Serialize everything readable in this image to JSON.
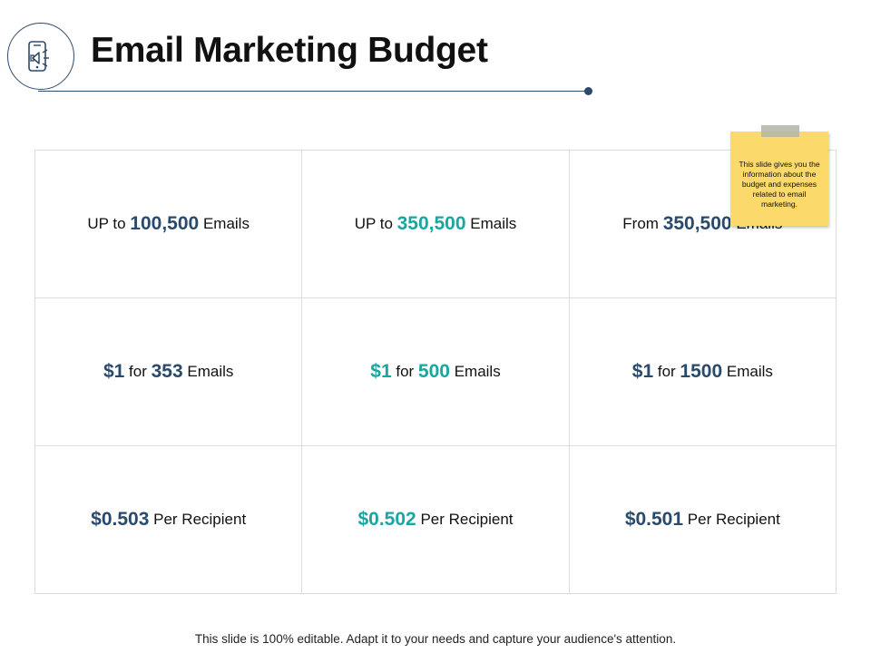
{
  "title": "Email Marketing Budget",
  "logo_icon": "mobile-megaphone-icon",
  "colors": {
    "navy": "#2a4a6d",
    "teal": "#1aa6a1",
    "note": "#fbd96a"
  },
  "rows": [
    [
      {
        "pre": "UP to ",
        "value": "100,500",
        "post": " Emails",
        "color": "navy"
      },
      {
        "pre": "UP to ",
        "value": "350,500",
        "post": " Emails",
        "color": "teal"
      },
      {
        "pre": "From ",
        "value": "350,500",
        "post": " Emails",
        "color": "navy"
      }
    ],
    [
      {
        "value": "$1",
        "mid": " for ",
        "value2": "353",
        "post": " Emails",
        "color": "navy"
      },
      {
        "value": "$1",
        "mid": " for ",
        "value2": "500",
        "post": " Emails",
        "color": "teal"
      },
      {
        "value": "$1",
        "mid": " for ",
        "value2": "1500",
        "post": " Emails",
        "color": "navy"
      }
    ],
    [
      {
        "value": "$0.503",
        "post": " Per Recipient",
        "color": "navy"
      },
      {
        "value": "$0.502",
        "post": " Per Recipient",
        "color": "teal"
      },
      {
        "value": "$0.501",
        "post": " Per Recipient",
        "color": "navy"
      }
    ]
  ],
  "note": "This slide gives you the information about the budget and expenses related to email marketing.",
  "footer": "This slide is 100% editable. Adapt it to your needs and capture your audience's attention."
}
